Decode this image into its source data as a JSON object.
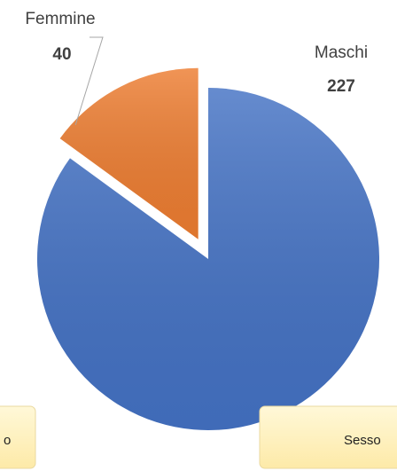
{
  "chart_data": {
    "type": "pie",
    "categories": [
      "Maschi",
      "Femmine"
    ],
    "values": [
      227,
      40
    ],
    "colors": [
      "#4472c4",
      "#ed7d31"
    ],
    "explode": [
      false,
      true
    ],
    "annotations": [
      "o",
      "Sesso"
    ]
  }
}
